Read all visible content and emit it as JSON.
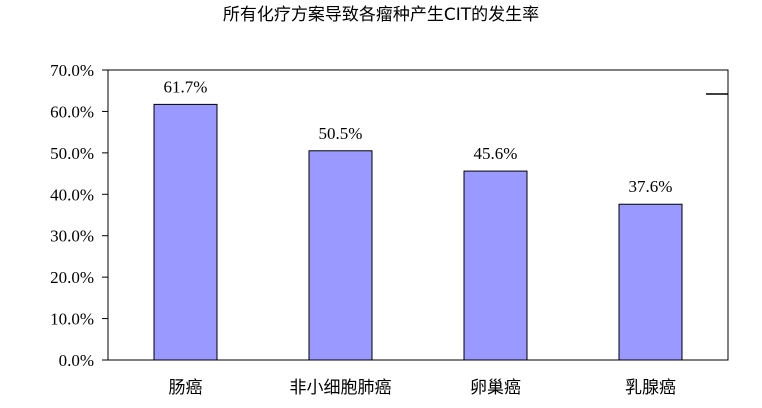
{
  "chart_data": {
    "type": "bar",
    "title": "所有化疗方案导致各瘤种产生CIT的发生率",
    "xlabel": "",
    "ylabel": "",
    "categories": [
      "肠癌",
      "非小细胞肺癌",
      "卵巢癌",
      "乳腺癌"
    ],
    "values": [
      61.7,
      50.5,
      45.6,
      37.6
    ],
    "data_labels": [
      "61.7%",
      "50.5%",
      "45.6%",
      "37.6%"
    ],
    "ylim": [
      0,
      70
    ],
    "yticks": [
      0,
      10,
      20,
      30,
      40,
      50,
      60,
      70
    ],
    "ytick_labels": [
      "0.0%",
      "10.0%",
      "20.0%",
      "30.0%",
      "40.0%",
      "50.0%",
      "60.0%",
      "70.0%"
    ],
    "grid": false,
    "legend": "none",
    "bar_color": "#9999ff",
    "bar_edge_color": "#000000"
  }
}
